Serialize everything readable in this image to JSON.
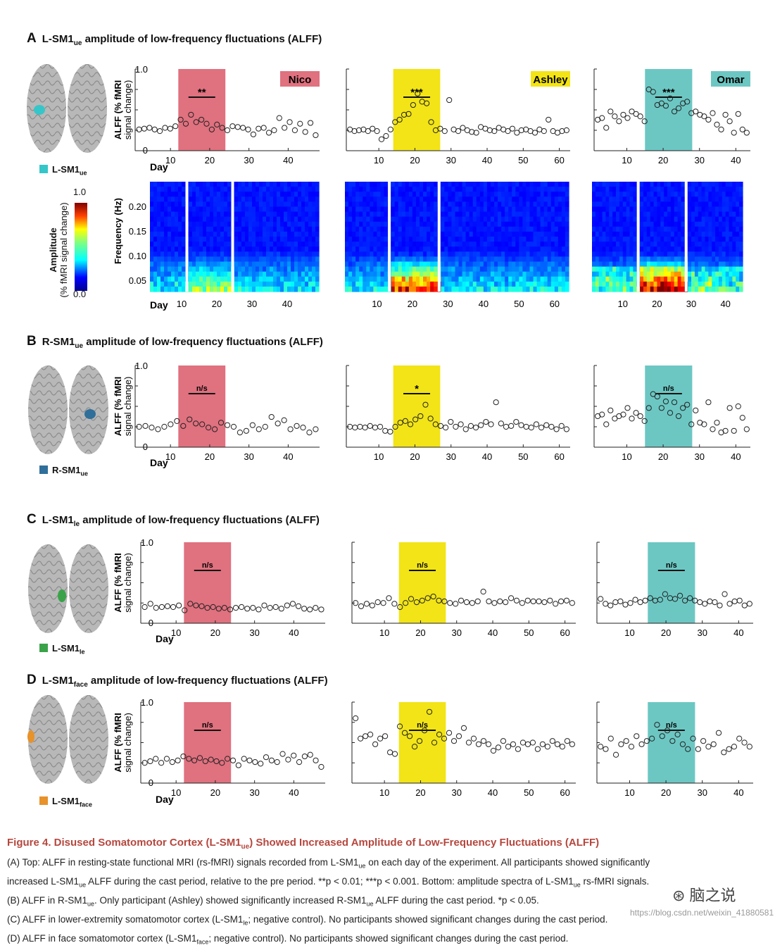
{
  "colors": {
    "nico": "#e0717f",
    "ashley": "#f2e416",
    "omar": "#6cc7c3",
    "caption": "#b5473e"
  },
  "participants": [
    "Nico",
    "Ashley",
    "Omar"
  ],
  "common": {
    "day_label": "Day",
    "ylabel_1": "ALFF (% fMRI",
    "ylabel_2": "signal change)",
    "y_max": "1.0",
    "y_min": "0"
  },
  "panels": [
    {
      "letter": "A",
      "title_pre": "L-SM1",
      "title_sub": "ue",
      "title_post": " amplitude of low-frequency fluctuations (ALFF)",
      "roi_pre": "L-SM1",
      "roi_sub": "ue",
      "roi_color": "#35c6c9",
      "sig": [
        "**",
        "***",
        "***"
      ]
    },
    {
      "letter": "B",
      "title_pre": "R-SM1",
      "title_sub": "ue",
      "title_post": " amplitude of low-frequency fluctuations (ALFF)",
      "roi_pre": "R-SM1",
      "roi_sub": "ue",
      "roi_color": "#2f6f9a",
      "sig": [
        "n/s",
        "*",
        "n/s"
      ]
    },
    {
      "letter": "C",
      "title_pre": "L-SM1",
      "title_sub": "le",
      "title_post": " amplitude of low-frequency fluctuations (ALFF)",
      "roi_pre": "L-SM1",
      "roi_sub": "le",
      "roi_color": "#3aa34a",
      "sig": [
        "n/s",
        "n/s",
        "n/s"
      ]
    },
    {
      "letter": "D",
      "title_pre": "L-SM1",
      "title_sub": "face",
      "title_post": " amplitude of low-frequency fluctuations (ALFF)",
      "roi_pre": "L-SM1",
      "roi_sub": "face",
      "roi_color": "#e8922a",
      "sig": [
        "n/s",
        "n/s",
        "n/s"
      ]
    }
  ],
  "spectrogram": {
    "ylabel": "Frequency (Hz)",
    "yticks": [
      "0.20",
      "0.15",
      "0.10",
      "0.05"
    ],
    "colorbar_label_1": "Amplitude",
    "colorbar_label_2": "(% fMRI signal change)",
    "colorbar_max": "1.0",
    "colorbar_min": "0.0"
  },
  "chart_data": [
    {
      "type": "scatter",
      "participant": "Nico",
      "xticks": [
        10,
        20,
        30,
        40
      ],
      "xlim": [
        1,
        48
      ],
      "ylim": [
        0,
        1
      ],
      "cast": [
        12,
        24
      ],
      "panelA": [
        0.26,
        0.27,
        0.28,
        0.26,
        0.24,
        0.28,
        0.27,
        0.3,
        0.38,
        0.33,
        0.44,
        0.35,
        0.38,
        0.33,
        0.26,
        0.32,
        0.28,
        0.25,
        0.3,
        0.29,
        0.28,
        0.26,
        0.2,
        0.27,
        0.28,
        0.22,
        0.25,
        0.4,
        0.28,
        0.35,
        0.25,
        0.33,
        0.23,
        0.34,
        0.19
      ],
      "panelB": [
        0.25,
        0.26,
        0.24,
        0.22,
        0.25,
        0.28,
        0.32,
        0.26,
        0.34,
        0.29,
        0.28,
        0.24,
        0.22,
        0.3,
        0.27,
        0.25,
        0.18,
        0.2,
        0.27,
        0.22,
        0.25,
        0.37,
        0.29,
        0.33,
        0.22,
        0.26,
        0.24,
        0.18,
        0.22
      ],
      "panelC": [
        0.2,
        0.24,
        0.19,
        0.2,
        0.21,
        0.2,
        0.22,
        0.16,
        0.24,
        0.22,
        0.21,
        0.19,
        0.2,
        0.18,
        0.19,
        0.17,
        0.19,
        0.2,
        0.18,
        0.19,
        0.17,
        0.22,
        0.19,
        0.2,
        0.18,
        0.22,
        0.24,
        0.21,
        0.18,
        0.17,
        0.19,
        0.17
      ],
      "panelD": [
        0.25,
        0.27,
        0.3,
        0.25,
        0.3,
        0.26,
        0.28,
        0.33,
        0.3,
        0.28,
        0.31,
        0.27,
        0.29,
        0.27,
        0.25,
        0.3,
        0.28,
        0.22,
        0.3,
        0.28,
        0.26,
        0.24,
        0.32,
        0.28,
        0.26,
        0.36,
        0.29,
        0.34,
        0.26,
        0.33,
        0.35,
        0.28,
        0.2
      ]
    },
    {
      "type": "scatter",
      "participant": "Ashley",
      "xticks": [
        10,
        20,
        30,
        40,
        50,
        60
      ],
      "xlim": [
        1,
        63
      ],
      "ylim": [
        0,
        1
      ],
      "cast": [
        14,
        27
      ],
      "panelA": [
        0.26,
        0.24,
        0.25,
        0.26,
        0.24,
        0.27,
        0.24,
        0.14,
        0.18,
        0.26,
        0.35,
        0.38,
        0.44,
        0.45,
        0.56,
        0.7,
        0.6,
        0.58,
        0.35,
        0.25,
        0.27,
        0.24,
        0.62,
        0.26,
        0.24,
        0.28,
        0.25,
        0.23,
        0.22,
        0.29,
        0.27,
        0.25,
        0.24,
        0.28,
        0.26,
        0.24,
        0.27,
        0.22,
        0.25,
        0.26,
        0.24,
        0.22,
        0.26,
        0.24,
        0.38,
        0.24,
        0.22,
        0.24,
        0.25
      ],
      "panelB": [
        0.25,
        0.24,
        0.25,
        0.24,
        0.26,
        0.24,
        0.25,
        0.2,
        0.19,
        0.25,
        0.3,
        0.32,
        0.28,
        0.34,
        0.38,
        0.52,
        0.35,
        0.28,
        0.26,
        0.24,
        0.31,
        0.25,
        0.28,
        0.22,
        0.26,
        0.24,
        0.27,
        0.31,
        0.28,
        0.55,
        0.29,
        0.25,
        0.26,
        0.31,
        0.27,
        0.25,
        0.24,
        0.28,
        0.24,
        0.27,
        0.25,
        0.22,
        0.26,
        0.22
      ],
      "panelC": [
        0.25,
        0.21,
        0.24,
        0.22,
        0.26,
        0.25,
        0.31,
        0.24,
        0.2,
        0.25,
        0.3,
        0.26,
        0.28,
        0.31,
        0.33,
        0.28,
        0.27,
        0.25,
        0.24,
        0.28,
        0.26,
        0.25,
        0.27,
        0.39,
        0.27,
        0.25,
        0.27,
        0.26,
        0.31,
        0.28,
        0.25,
        0.28,
        0.27,
        0.27,
        0.26,
        0.28,
        0.24,
        0.27,
        0.28,
        0.25
      ],
      "panelD": [
        0.8,
        0.55,
        0.58,
        0.6,
        0.48,
        0.55,
        0.58,
        0.38,
        0.36,
        0.7,
        0.62,
        0.58,
        0.45,
        0.52,
        0.65,
        0.88,
        0.5,
        0.6,
        0.55,
        0.62,
        0.52,
        0.58,
        0.68,
        0.5,
        0.55,
        0.48,
        0.52,
        0.48,
        0.4,
        0.44,
        0.52,
        0.45,
        0.48,
        0.42,
        0.5,
        0.48,
        0.5,
        0.42,
        0.48,
        0.45,
        0.52,
        0.48,
        0.45,
        0.52,
        0.48
      ],
      "_note": "Ashley panel D points"
    },
    {
      "type": "scatter",
      "participant": "Omar",
      "xticks": [
        10,
        20,
        30,
        40
      ],
      "xlim": [
        1,
        44
      ],
      "ylim": [
        0,
        1
      ],
      "cast": [
        15,
        28
      ],
      "panelA": [
        0.38,
        0.4,
        0.28,
        0.48,
        0.42,
        0.36,
        0.44,
        0.4,
        0.48,
        0.45,
        0.42,
        0.36,
        0.75,
        0.72,
        0.56,
        0.58,
        0.55,
        0.64,
        0.48,
        0.52,
        0.58,
        0.6,
        0.46,
        0.48,
        0.44,
        0.42,
        0.38,
        0.46,
        0.32,
        0.26,
        0.44,
        0.36,
        0.22,
        0.45,
        0.26,
        0.22
      ],
      "panelB": [
        0.38,
        0.4,
        0.28,
        0.45,
        0.35,
        0.38,
        0.4,
        0.48,
        0.35,
        0.42,
        0.38,
        0.32,
        0.48,
        0.65,
        0.62,
        0.48,
        0.56,
        0.42,
        0.55,
        0.38,
        0.48,
        0.52,
        0.28,
        0.45,
        0.3,
        0.28,
        0.55,
        0.22,
        0.3,
        0.18,
        0.2,
        0.48,
        0.2,
        0.5,
        0.36,
        0.22
      ],
      "panelC": [
        0.3,
        0.24,
        0.22,
        0.26,
        0.27,
        0.23,
        0.25,
        0.29,
        0.26,
        0.28,
        0.31,
        0.28,
        0.29,
        0.36,
        0.31,
        0.3,
        0.34,
        0.28,
        0.31,
        0.28,
        0.26,
        0.24,
        0.27,
        0.26,
        0.22,
        0.36,
        0.24,
        0.27,
        0.28,
        0.22,
        0.24
      ],
      "panelD": [
        0.45,
        0.42,
        0.55,
        0.35,
        0.48,
        0.52,
        0.45,
        0.58,
        0.48,
        0.52,
        0.55,
        0.72,
        0.58,
        0.65,
        0.52,
        0.6,
        0.48,
        0.42,
        0.55,
        0.42,
        0.52,
        0.45,
        0.48,
        0.62,
        0.38,
        0.42,
        0.45,
        0.55,
        0.5,
        0.45
      ]
    }
  ],
  "spectro_xticks": [
    [
      10,
      20,
      30,
      40
    ],
    [
      10,
      20,
      30,
      40,
      50,
      60
    ],
    [
      10,
      20,
      30,
      40
    ]
  ],
  "caption": {
    "title_pre": "Figure 4.  Disused Somatomotor Cortex (L-SM1",
    "title_sub": "ue",
    "title_post": ") Showed Increased Amplitude of Low-Frequency Fluctuations (ALFF)",
    "lineA1_pre": "(A) Top: ALFF in resting-state functional MRI (rs-fMRI) signals recorded from L-SM1",
    "lineA1_sub": "ue",
    "lineA1_post": " on each day of the experiment. All participants showed significantly",
    "lineA2_pre": "increased L-SM1",
    "lineA2_sub": "ue",
    "lineA2_mid": " ALFF during the cast period, relative to the pre period. **p < 0.01; ***p < 0.001. Bottom: amplitude spectra of L-SM1",
    "lineA2_sub2": "ue",
    "lineA2_post": " rs-fMRI signals.",
    "lineB_pre": "(B) ALFF in R-SM1",
    "lineB_sub": "ue",
    "lineB_mid": ". Only participant (Ashley) showed significantly increased R-SM1",
    "lineB_sub2": "ue",
    "lineB_post": " ALFF during the cast period. *p < 0.05.",
    "lineC_pre": "(C) ALFF in lower-extremity somatomotor cortex (L-SM1",
    "lineC_sub": "le",
    "lineC_post": "; negative control). No participants showed significant changes during the cast period.",
    "lineD_pre": "(D) ALFF in face somatomotor cortex (L-SM1",
    "lineD_sub": "face",
    "lineD_post": "; negative control). No participants showed significant changes during the cast period."
  },
  "watermark": {
    "logo": "脑之说",
    "url": "https://blog.csdn.net/weixin_41880581"
  }
}
